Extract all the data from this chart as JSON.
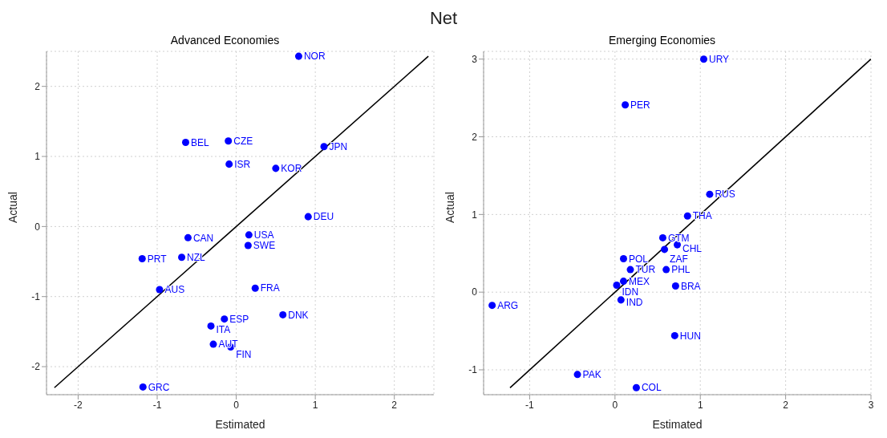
{
  "chart_data": [
    {
      "type": "scatter",
      "title": "Advanced Economies",
      "annotations": [
        "Net"
      ],
      "xlabel": "Estimated",
      "ylabel": "Actual",
      "xlim": [
        -2.4,
        2.5
      ],
      "ylim": [
        -2.4,
        2.5
      ],
      "xticks": [
        -2,
        -1,
        0,
        1,
        2
      ],
      "yticks": [
        -2,
        -1,
        0,
        1,
        2
      ],
      "grid": true,
      "legend": false,
      "series": [
        {
          "color": "#0000ff",
          "marker": "circle",
          "x": [
            0.79,
            1.11,
            0.5,
            0.91,
            -0.1,
            -0.64,
            -0.09,
            -0.61,
            0.16,
            0.15,
            -1.19,
            -0.69,
            -0.97,
            0.24,
            0.59,
            -0.15,
            -0.32,
            -0.29,
            -0.07,
            -1.18
          ],
          "values": [
            2.43,
            1.14,
            0.83,
            0.14,
            1.22,
            1.2,
            0.89,
            -0.16,
            -0.12,
            -0.27,
            -0.46,
            -0.44,
            -0.9,
            -0.88,
            -1.26,
            -1.32,
            -1.42,
            -1.68,
            -1.72,
            -2.29
          ],
          "value_labels": [
            "NOR",
            "JPN",
            "KOR",
            "DEU",
            "CZE",
            "BEL",
            "ISR",
            "CAN",
            "USA",
            "SWE",
            "PRT",
            "NZL",
            "AUS",
            "FRA",
            "DNK",
            "ESP",
            "ITA",
            "AUT",
            "FIN",
            "GRC"
          ]
        },
        {
          "type": "line",
          "color": "#000000",
          "marker": "none",
          "x": [
            -2.3,
            2.43
          ],
          "values": [
            -2.3,
            2.43
          ]
        }
      ]
    },
    {
      "type": "scatter",
      "title": "Emerging Economies",
      "xlabel": "Estimated",
      "ylabel": "Actual",
      "xlim": [
        -1.54,
        3.0
      ],
      "ylim": [
        -1.32,
        3.1
      ],
      "xticks": [
        -1,
        0,
        1,
        2,
        3
      ],
      "yticks": [
        -1,
        0,
        1,
        2,
        3
      ],
      "grid": true,
      "legend": false,
      "series": [
        {
          "color": "#0000ff",
          "marker": "circle",
          "x": [
            1.04,
            0.12,
            1.11,
            0.85,
            0.56,
            0.73,
            0.58,
            0.1,
            0.18,
            0.6,
            0.1,
            0.02,
            0.71,
            0.07,
            -1.44,
            0.7,
            -0.44,
            0.25
          ],
          "values": [
            3.0,
            2.41,
            1.26,
            0.98,
            0.7,
            0.61,
            0.55,
            0.43,
            0.29,
            0.29,
            0.14,
            0.09,
            0.08,
            -0.1,
            -0.17,
            -0.56,
            -1.06,
            -1.23
          ],
          "value_labels": [
            "URY",
            "PER",
            "RUS",
            "THA",
            "GTM",
            "CHL",
            "ZAF",
            "POL",
            "TUR",
            "PHL",
            "MEX",
            "IDN",
            "BRA",
            "IND",
            "ARG",
            "HUN",
            "PAK",
            "COL"
          ]
        },
        {
          "type": "line",
          "color": "#000000",
          "marker": "none",
          "x": [
            -1.23,
            3.0
          ],
          "values": [
            -1.23,
            3.0
          ]
        }
      ]
    }
  ]
}
